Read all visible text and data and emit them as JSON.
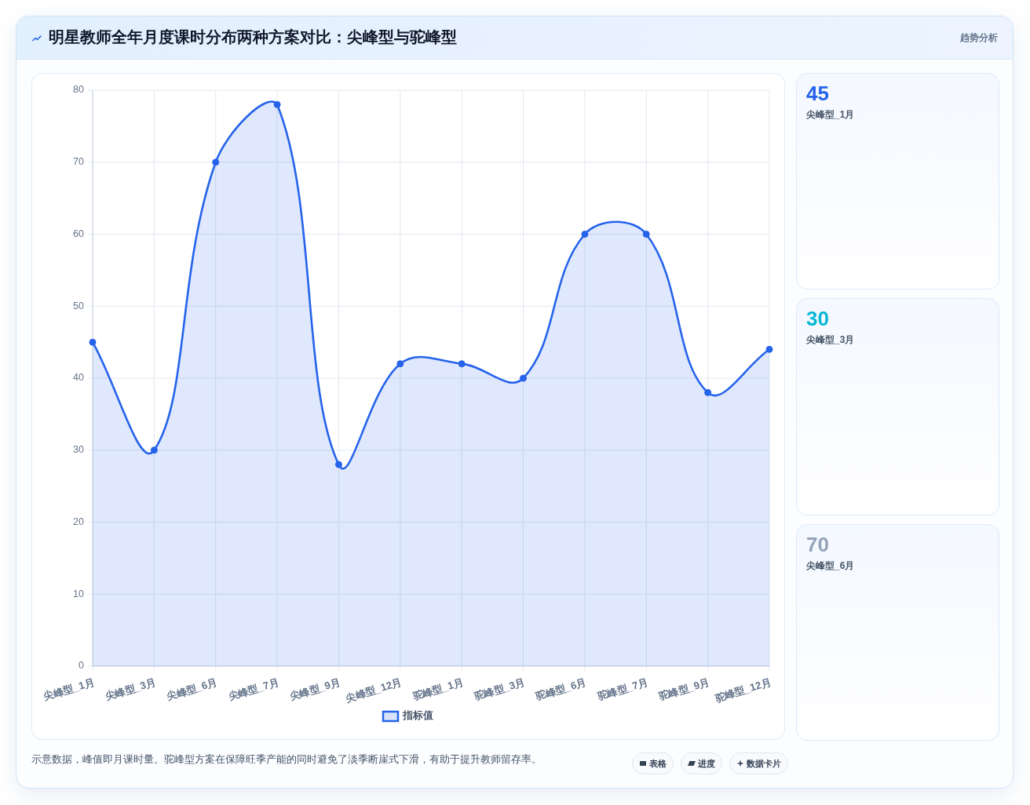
{
  "chart_data": [
    {
      "type": "area",
      "title": "明星教师全年月度课时分布两种方案对比：尖峰型与驼峰型",
      "categories": [
        "尖峰型_1月",
        "尖峰型_3月",
        "尖峰型_6月",
        "尖峰型_7月",
        "尖峰型_9月",
        "尖峰型_12月",
        "驼峰型_1月",
        "驼峰型_3月",
        "驼峰型_6月",
        "驼峰型_7月",
        "驼峰型_9月",
        "驼峰型_12月"
      ],
      "series": [
        {
          "name": "指标值",
          "color": "#2563eb",
          "values": [
            45,
            30,
            70,
            78,
            28,
            42,
            42,
            40,
            60,
            60,
            38,
            44
          ]
        }
      ],
      "ylim": [
        0,
        80
      ],
      "yticks": [
        0,
        10,
        20,
        30,
        40,
        50,
        60,
        70,
        80
      ],
      "grid": true,
      "legend": "bottom",
      "marker": "circle",
      "annotations": [
        "趋势分析",
        "示意数据，峰值即月课时量。驼峰型方案在保障旺季产能的同时避免了淡季断崖式下滑，有助于提升教师留存率。",
        "表格",
        "进度",
        "数据卡片"
      ]
    },
    {
      "type": "other",
      "annotations": [
        "45",
        "尖峰型_1月"
      ]
    },
    {
      "type": "other",
      "annotations": [
        "30",
        "尖峰型_3月"
      ]
    },
    {
      "type": "other",
      "annotations": [
        "70",
        "尖峰型_6月"
      ]
    }
  ]
}
